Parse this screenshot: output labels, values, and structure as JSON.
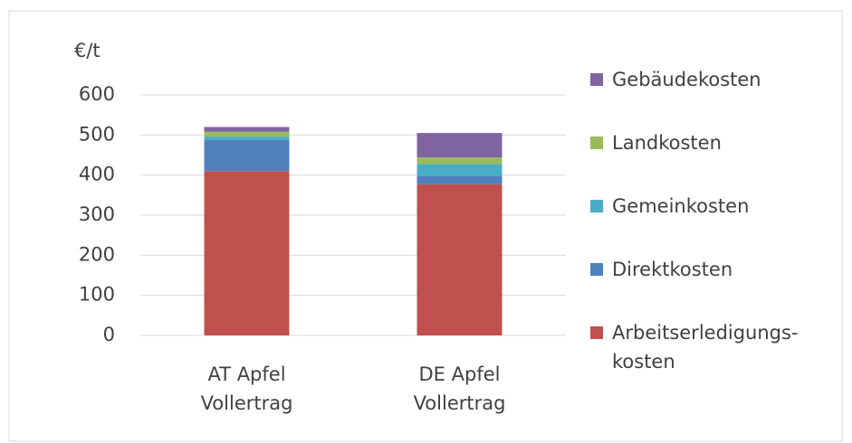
{
  "chart_data": {
    "type": "bar",
    "stacked": true,
    "y_label": "€/t",
    "categories": [
      "AT Apfel Vollertrag",
      "DE Apfel Vollertrag"
    ],
    "series": [
      {
        "name": "Arbeitserledigungs-kosten",
        "color": "#c0504d",
        "values": [
          410,
          377
        ]
      },
      {
        "name": "Direktkosten",
        "color": "#4f81bd",
        "values": [
          78,
          20
        ]
      },
      {
        "name": "Gemeinkosten",
        "color": "#4bacc6",
        "values": [
          8,
          31
        ]
      },
      {
        "name": "Landkosten",
        "color": "#9bbb59",
        "values": [
          12,
          16
        ]
      },
      {
        "name": "Gebäudekosten",
        "color": "#8064a2",
        "values": [
          12,
          61
        ]
      }
    ],
    "ylim": [
      0,
      600
    ],
    "yticks": [
      0,
      100,
      200,
      300,
      400,
      500,
      600
    ],
    "grid": true,
    "legend": "right"
  }
}
